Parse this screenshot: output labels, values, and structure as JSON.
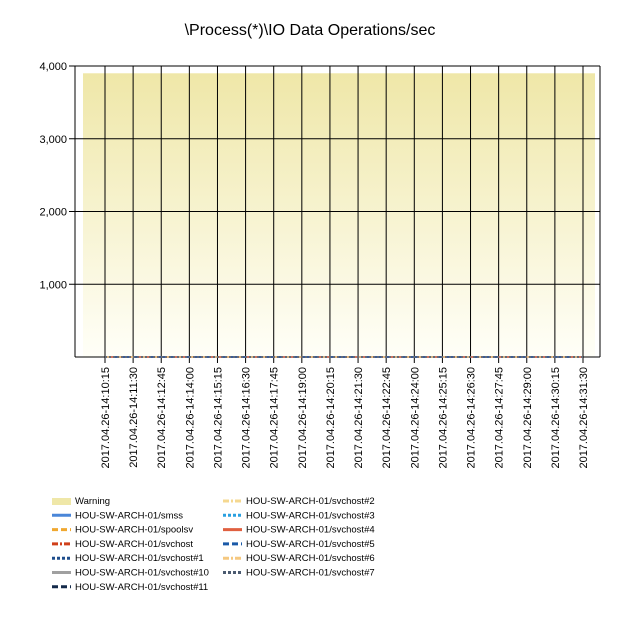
{
  "chart_data": {
    "type": "line",
    "title": "\\Process(*)\\IO Data Operations/sec",
    "xlabel": "",
    "ylabel": "",
    "ylim": [
      0,
      4000
    ],
    "y_ticks": [
      "1,000",
      "2,000",
      "3,000",
      "4,000"
    ],
    "y_tick_values": [
      1000,
      2000,
      3000,
      4000
    ],
    "grid": true,
    "legend_position": "bottom",
    "categories": [
      "2017.04.26-14:10:15",
      "2017.04.26-14:11:30",
      "2017.04.26-14:12:45",
      "2017.04.26-14:14:00",
      "2017.04.26-14:15:15",
      "2017.04.26-14:16:30",
      "2017.04.26-14:17:45",
      "2017.04.26-14:19:00",
      "2017.04.26-14:20:15",
      "2017.04.26-14:21:30",
      "2017.04.26-14:22:45",
      "2017.04.26-14:24:00",
      "2017.04.26-14:25:15",
      "2017.04.26-14:26:30",
      "2017.04.26-14:27:45",
      "2017.04.26-14:29:00",
      "2017.04.26-14:30:15",
      "2017.04.26-14:31:30"
    ],
    "warning_band": {
      "name": "Warning",
      "from": 0,
      "to": 3900,
      "color_top": "#efe7a8",
      "color_bottom": "#fffff8"
    },
    "series": [
      {
        "name": "HOU-SW-ARCH-01/smss",
        "color": "#4a86d8",
        "dash": "solid",
        "value": 0
      },
      {
        "name": "HOU-SW-ARCH-01/spoolsv",
        "color": "#f0a830",
        "dash": "dash",
        "value": 0
      },
      {
        "name": "HOU-SW-ARCH-01/svchost",
        "color": "#d0401a",
        "dash": "dashdot",
        "value": 0
      },
      {
        "name": "HOU-SW-ARCH-01/svchost#1",
        "color": "#1f4e8c",
        "dash": "dot",
        "value": 0
      },
      {
        "name": "HOU-SW-ARCH-01/svchost#10",
        "color": "#a0a0a0",
        "dash": "solid",
        "value": 0
      },
      {
        "name": "HOU-SW-ARCH-01/svchost#11",
        "color": "#142a4a",
        "dash": "dash",
        "value": 0
      },
      {
        "name": "HOU-SW-ARCH-01/svchost#2",
        "color": "#f5d890",
        "dash": "dashdot",
        "value": 0
      },
      {
        "name": "HOU-SW-ARCH-01/svchost#3",
        "color": "#2aa0e0",
        "dash": "dot",
        "value": 0
      },
      {
        "name": "HOU-SW-ARCH-01/svchost#4",
        "color": "#e06040",
        "dash": "solid",
        "value": 0
      },
      {
        "name": "HOU-SW-ARCH-01/svchost#5",
        "color": "#1a5aa8",
        "dash": "dash",
        "value": 0
      },
      {
        "name": "HOU-SW-ARCH-01/svchost#6",
        "color": "#f5c880",
        "dash": "dashdot",
        "value": 0
      },
      {
        "name": "HOU-SW-ARCH-01/svchost#7",
        "color": "#4a5a70",
        "dash": "dot",
        "value": 0
      }
    ]
  }
}
